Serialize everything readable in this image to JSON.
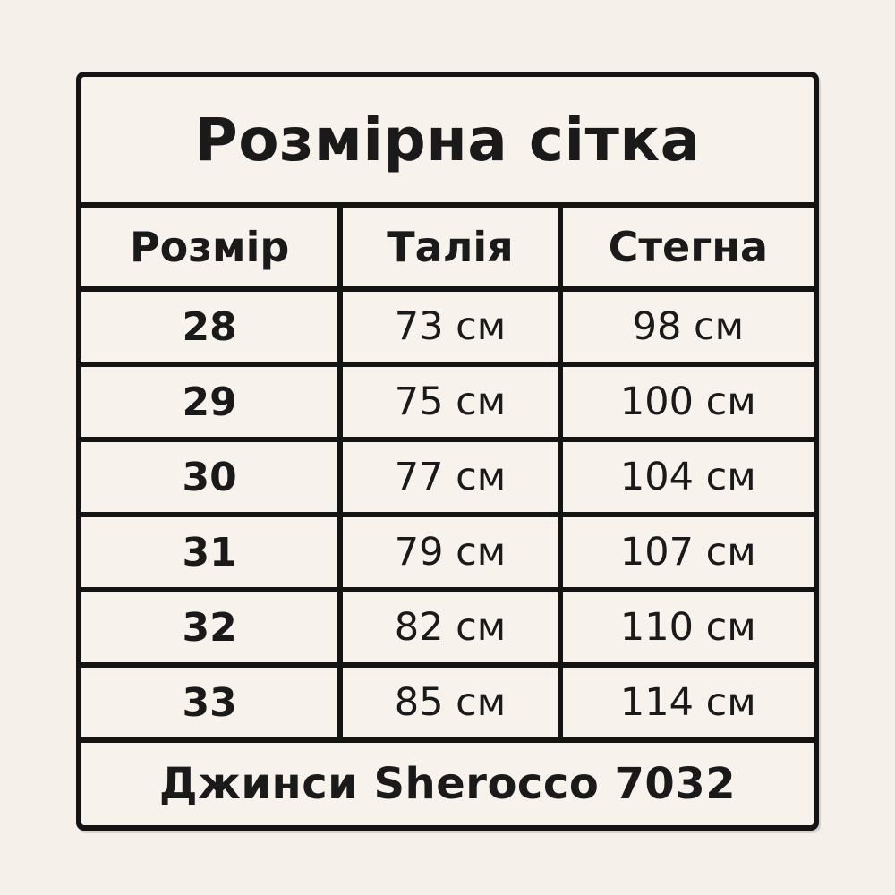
{
  "page": {
    "background": "#f5f0ea",
    "cell_background": "#f7f2ec",
    "border_color": "#141414",
    "text_color": "#1a1a1a"
  },
  "table": {
    "title": "Розмірна сітка",
    "headers": {
      "size": "Розмір",
      "waist": "Талія",
      "hips": "Стегна"
    },
    "rows": [
      {
        "size": "28",
        "waist": "73 см",
        "hips": "98 см"
      },
      {
        "size": "29",
        "waist": "75 см",
        "hips": "100 см"
      },
      {
        "size": "30",
        "waist": "77 см",
        "hips": "104 см"
      },
      {
        "size": "31",
        "waist": "79 см",
        "hips": "107 см"
      },
      {
        "size": "32",
        "waist": "82 см",
        "hips": "110 см"
      },
      {
        "size": "33",
        "waist": "85 см",
        "hips": "114 см"
      }
    ],
    "footer": "Джинси Sherocco 7032"
  },
  "chart_data": {
    "type": "table",
    "title": "Розмірна сітка",
    "columns": [
      "Розмір",
      "Талія",
      "Стегна"
    ],
    "rows": [
      [
        "28",
        "73 см",
        "98 см"
      ],
      [
        "29",
        "75 см",
        "100 см"
      ],
      [
        "30",
        "77 см",
        "104 см"
      ],
      [
        "31",
        "79 см",
        "107 см"
      ],
      [
        "32",
        "82 см",
        "110 см"
      ],
      [
        "33",
        "85 см",
        "114 см"
      ]
    ],
    "caption": "Джинси Sherocco 7032"
  }
}
